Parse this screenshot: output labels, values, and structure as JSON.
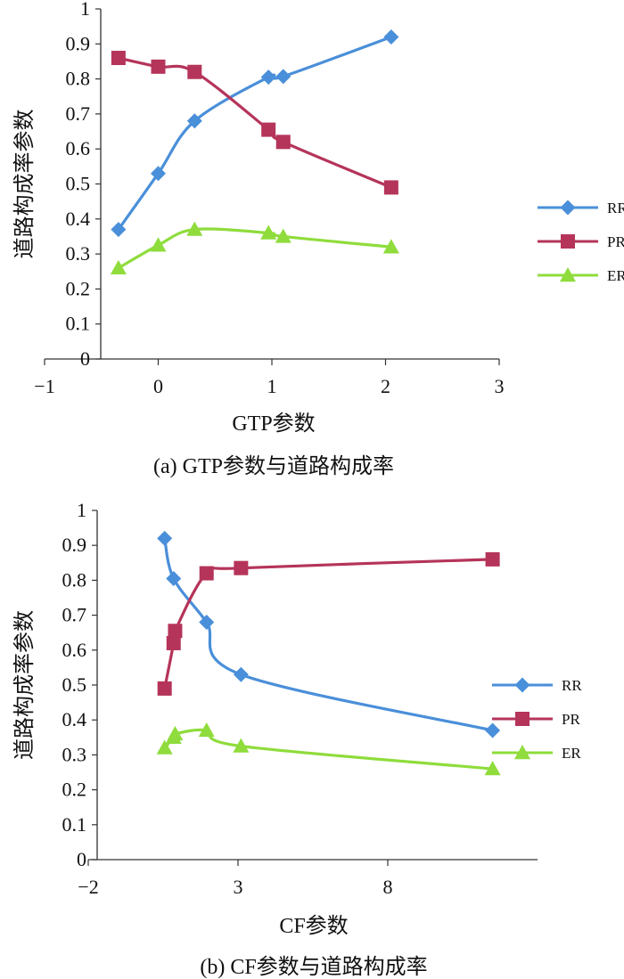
{
  "chart_data": [
    {
      "type": "line",
      "caption": "(a) GTP参数与道路构成率",
      "xlabel": "GTP参数",
      "ylabel": "道路构成率参数",
      "xlim": [
        -1,
        3
      ],
      "ylim": [
        0,
        1
      ],
      "x_ticks": [
        -1,
        0,
        1,
        2,
        3
      ],
      "x_tick_labels": [
        "−1",
        "0",
        "1",
        "2",
        "3"
      ],
      "y_ticks": [
        0,
        0.1,
        0.2,
        0.3,
        0.4,
        0.5,
        0.6,
        0.7,
        0.8,
        0.9,
        1
      ],
      "y_tick_labels": [
        "0",
        "0.1",
        "0.2",
        "0.3",
        "0.4",
        "0.5",
        "0.6",
        "0.7",
        "0.8",
        "0.9",
        "1"
      ],
      "legend_position": "right",
      "series": [
        {
          "name": "RR",
          "color": "#4a8fd9",
          "marker": "diamond",
          "x": [
            -0.35,
            0.0,
            0.32,
            0.97,
            1.1,
            2.05
          ],
          "y": [
            0.37,
            0.53,
            0.68,
            0.805,
            0.807,
            0.92
          ]
        },
        {
          "name": "PR",
          "color": "#b5345a",
          "marker": "square",
          "x": [
            -0.35,
            0.0,
            0.32,
            0.97,
            1.1,
            2.05
          ],
          "y": [
            0.86,
            0.835,
            0.82,
            0.655,
            0.62,
            0.49
          ]
        },
        {
          "name": "ER",
          "color": "#8fdc3c",
          "marker": "triangle",
          "x": [
            -0.35,
            0.0,
            0.32,
            0.97,
            1.1,
            2.05
          ],
          "y": [
            0.26,
            0.325,
            0.37,
            0.36,
            0.35,
            0.32
          ]
        }
      ]
    },
    {
      "type": "line",
      "caption": "(b) CF参数与道路构成率",
      "xlabel": "CF参数",
      "ylabel": "道路构成率参数",
      "xlim": [
        -2,
        13
      ],
      "ylim": [
        0,
        1
      ],
      "x_ticks": [
        -2,
        3,
        8
      ],
      "x_tick_labels": [
        "−2",
        "3",
        "8"
      ],
      "y_ticks": [
        0,
        0.1,
        0.2,
        0.3,
        0.4,
        0.5,
        0.6,
        0.7,
        0.8,
        0.9,
        1
      ],
      "y_tick_labels": [
        "0",
        "0.1",
        "0.2",
        "0.3",
        "0.4",
        "0.5",
        "0.6",
        "0.7",
        "0.8",
        "0.9",
        "1"
      ],
      "legend_position": "right",
      "series": [
        {
          "name": "RR",
          "color": "#4a8fd9",
          "marker": "diamond",
          "x": [
            0.55,
            0.85,
            1.95,
            3.1,
            11.5
          ],
          "y": [
            0.92,
            0.805,
            0.68,
            0.53,
            0.37
          ]
        },
        {
          "name": "PR",
          "color": "#b5345a",
          "marker": "square",
          "x": [
            0.55,
            0.85,
            0.9,
            1.95,
            3.1,
            11.5
          ],
          "y": [
            0.49,
            0.62,
            0.655,
            0.82,
            0.835,
            0.86
          ]
        },
        {
          "name": "ER",
          "color": "#8fdc3c",
          "marker": "triangle",
          "x": [
            0.55,
            0.85,
            0.9,
            1.95,
            3.1,
            11.5
          ],
          "y": [
            0.32,
            0.35,
            0.36,
            0.37,
            0.325,
            0.26
          ]
        }
      ]
    }
  ]
}
